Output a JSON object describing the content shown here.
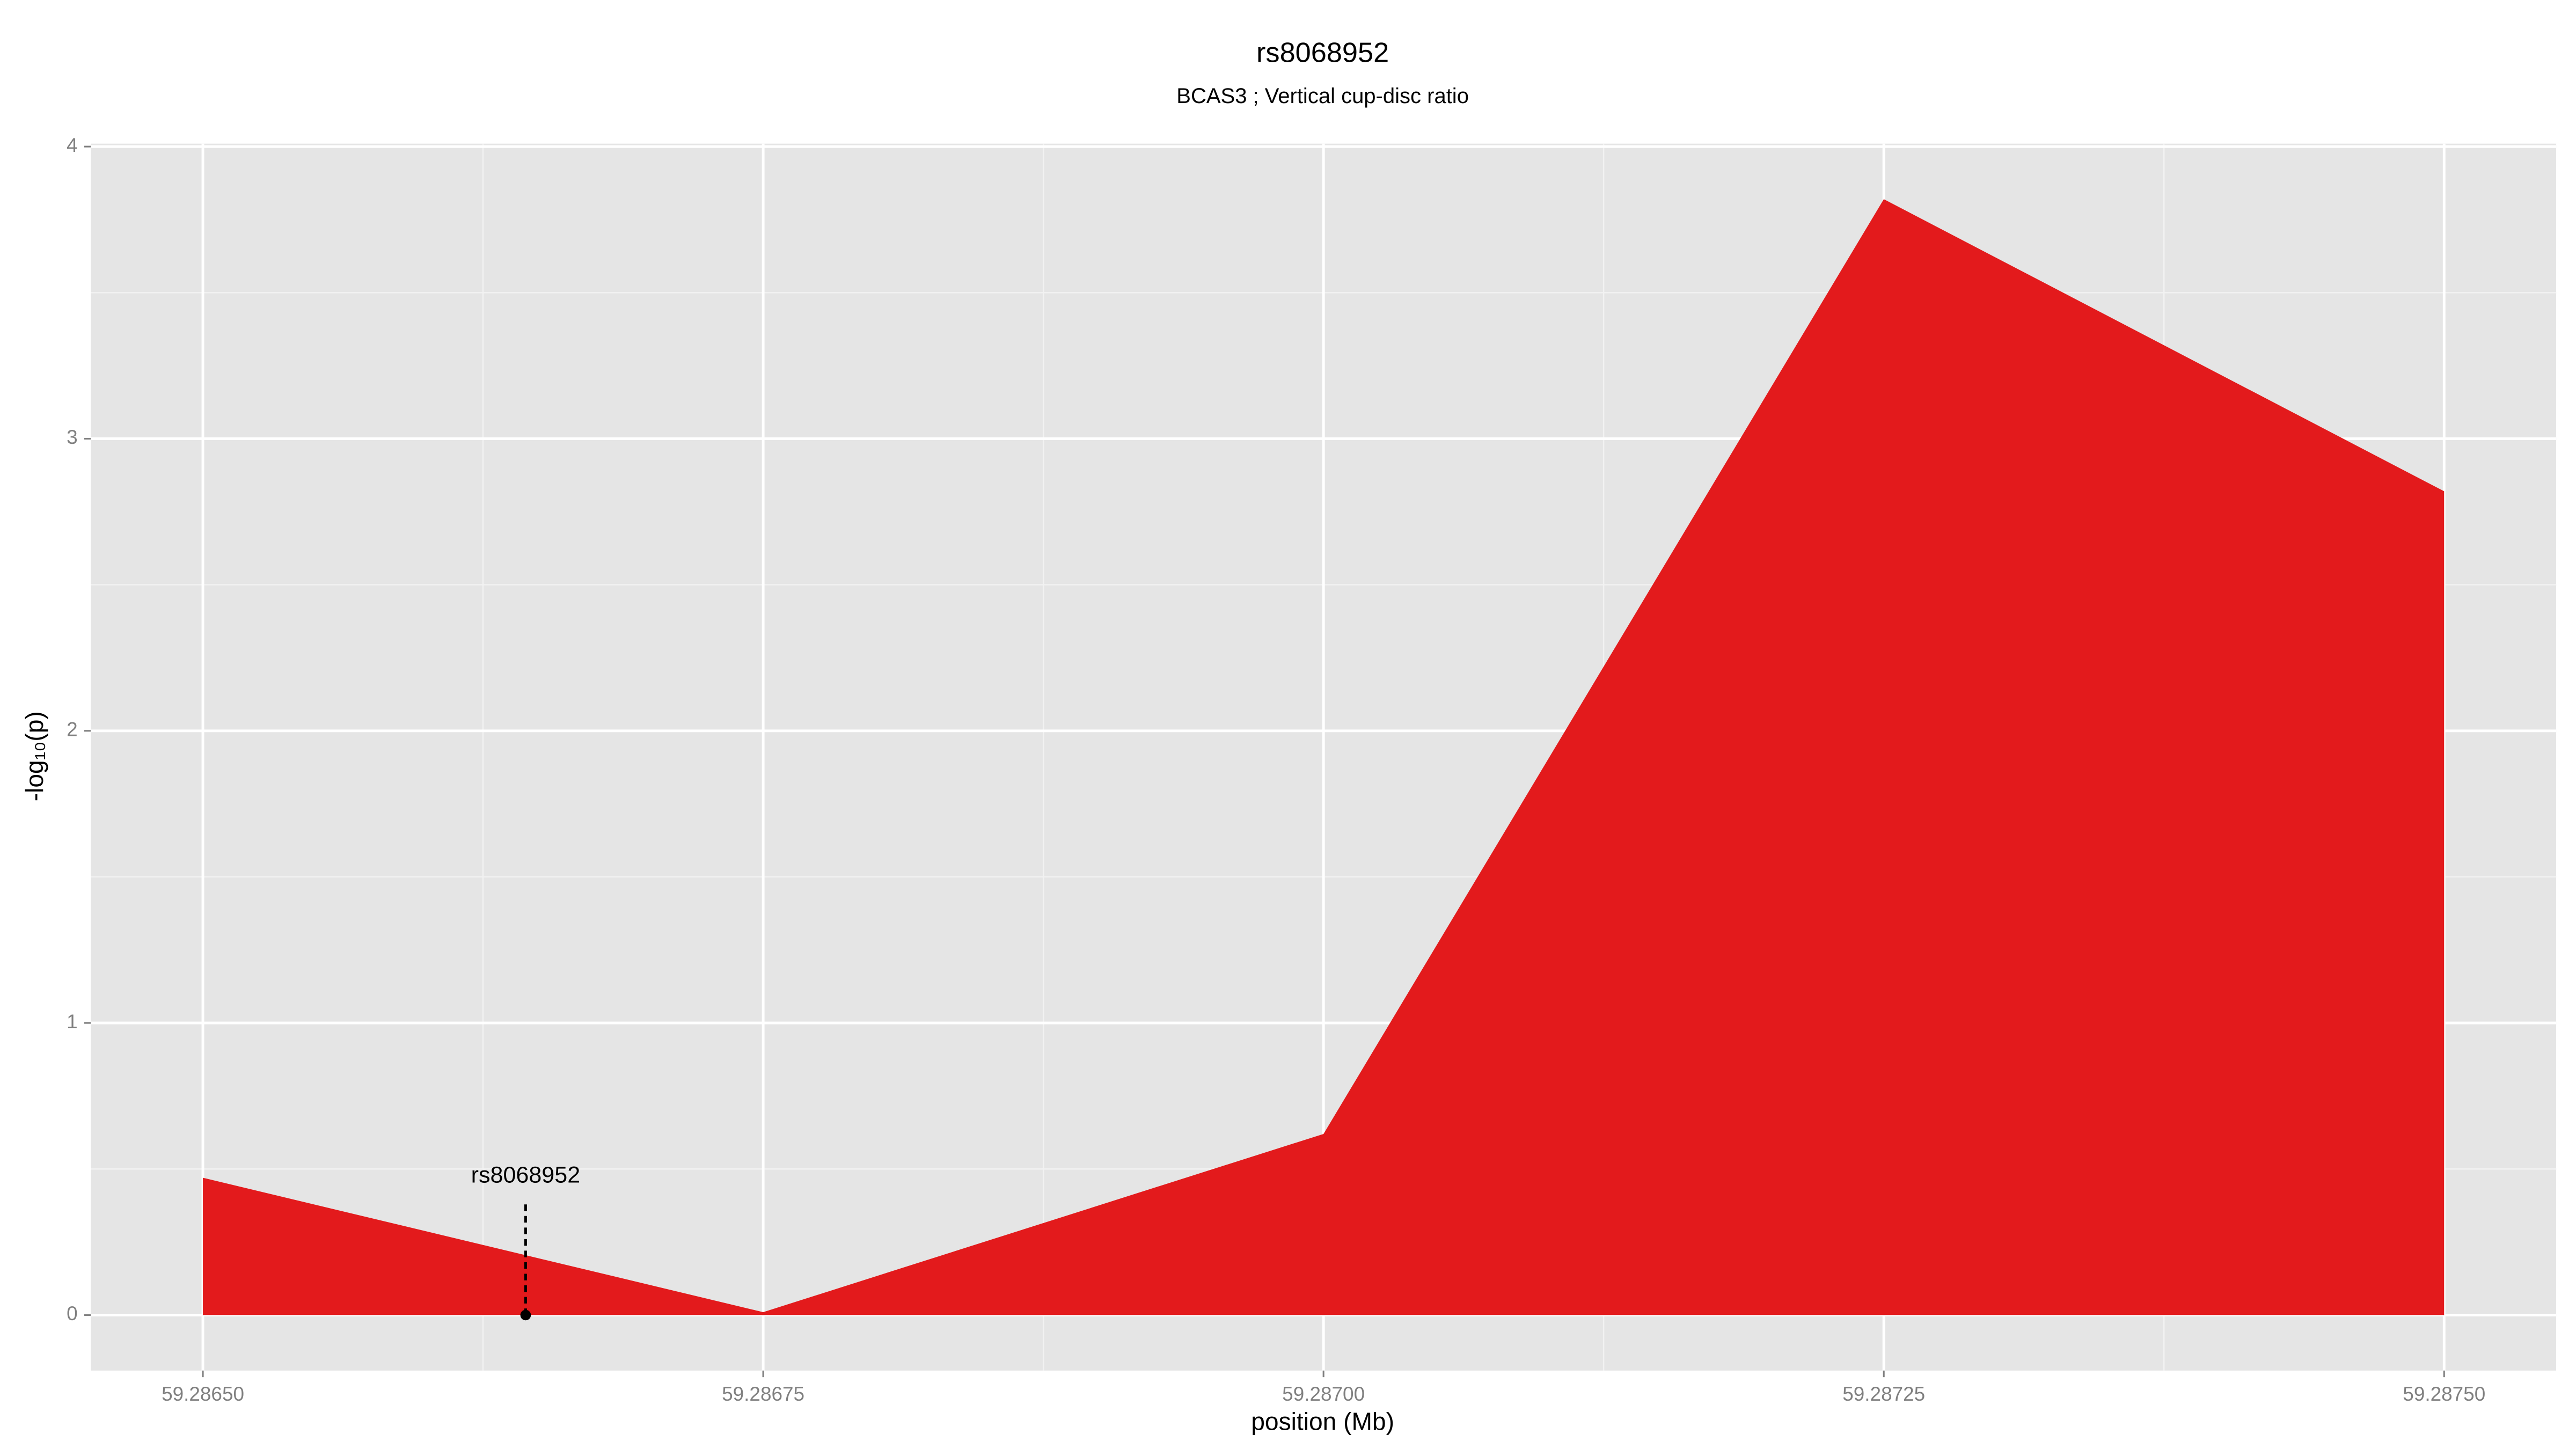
{
  "chart_data": {
    "type": "area",
    "title": "rs8068952",
    "subtitle": "BCAS3 ; Vertical cup-disc ratio",
    "x_label": "position (Mb)",
    "y_label": "-log₁₀(p)",
    "x": [
      59.2865,
      59.28675,
      59.287,
      59.28725,
      59.2875
    ],
    "values": [
      0.47,
      0.01,
      0.62,
      3.82,
      2.82
    ],
    "color": "#e31a1c",
    "xlim": [
      59.28645,
      59.28755
    ],
    "ylim": [
      -0.19,
      4.01
    ],
    "xticks": [
      {
        "value": 59.2865,
        "label": "59.28650"
      },
      59.28675,
      {
        "value": 59.287,
        "label": "59.28700"
      },
      59.28725,
      {
        "value": 59.2875,
        "label": "59.28750"
      }
    ],
    "yticks": [
      0,
      1,
      2,
      3,
      4
    ],
    "grid": true,
    "annotations": [
      {
        "label": "rs8068952",
        "x": 59.286644,
        "y": 0
      }
    ]
  }
}
